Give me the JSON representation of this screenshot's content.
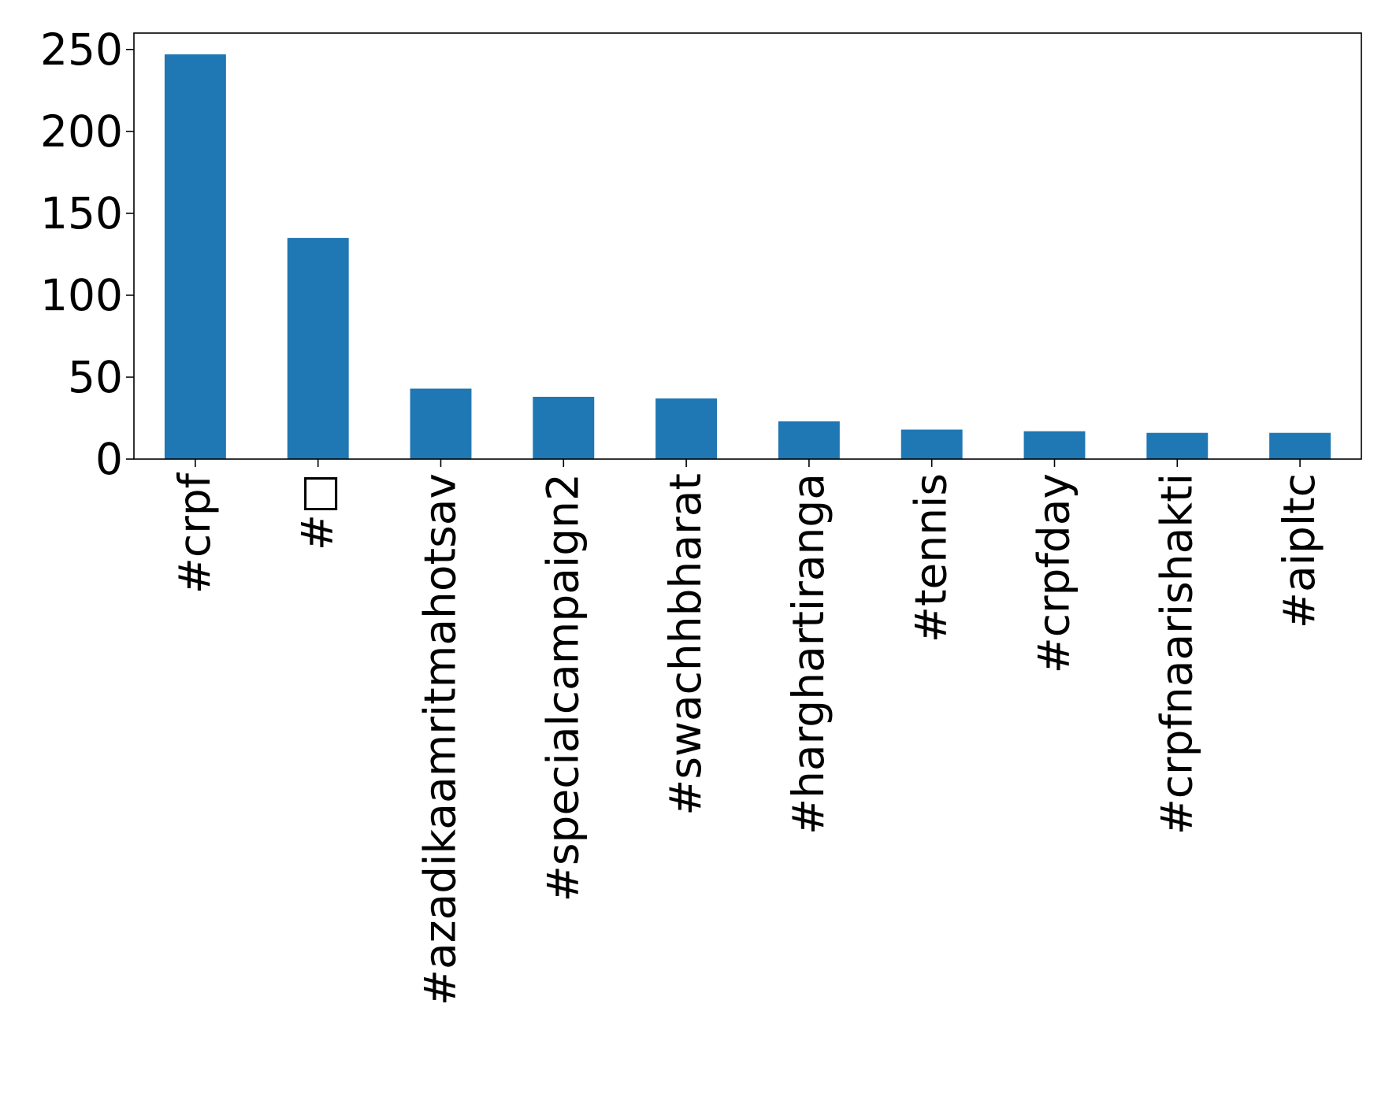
{
  "chart_data": {
    "type": "bar",
    "title": "",
    "xlabel": "",
    "ylabel": "",
    "categories": [
      "#crpf",
      "#□",
      "#azadikaamritmahotsav",
      "#specialcampaign2",
      "#swachhbharat",
      "#harghartiranga",
      "#tennis",
      "#crpfday",
      "#crpfnaarishakti",
      "#aipltc"
    ],
    "values": [
      247,
      135,
      43,
      38,
      37,
      23,
      18,
      17,
      16,
      16
    ],
    "ylim": [
      0,
      260
    ],
    "yticks": [
      0,
      50,
      100,
      150,
      200,
      250
    ],
    "bar_color": "#1f77b4",
    "grid": false,
    "legend": false
  }
}
